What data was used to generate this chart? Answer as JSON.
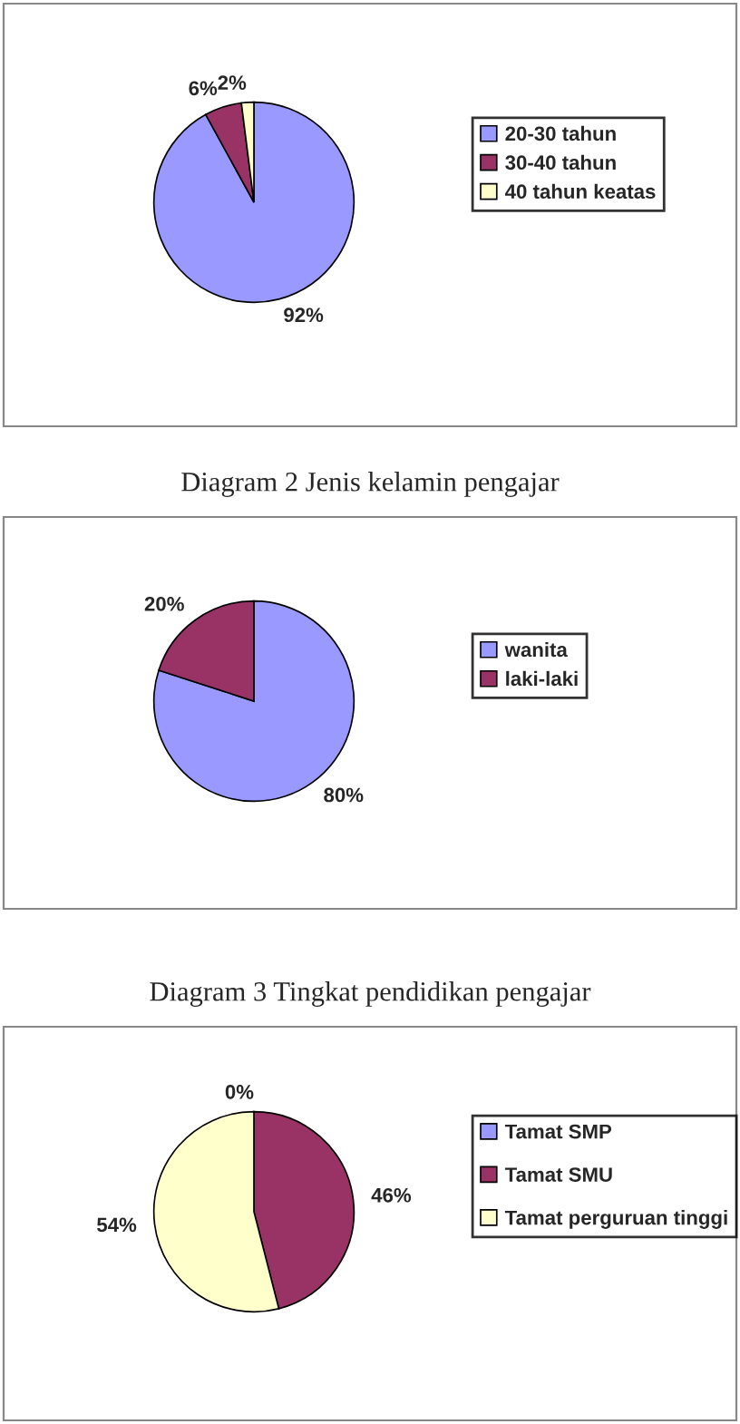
{
  "chart_data": [
    {
      "type": "pie",
      "categories": [
        "20-30 tahun",
        "30-40 tahun",
        "40 tahun keatas"
      ],
      "values": [
        92,
        6,
        2
      ],
      "value_labels": [
        "92%",
        "6%",
        "2%"
      ],
      "colors": [
        "#9999ff",
        "#993366",
        "#ffffcc"
      ],
      "legend": "right"
    },
    {
      "type": "pie",
      "title": "Diagram 2 Jenis kelamin pengajar",
      "categories": [
        "wanita",
        "laki-laki"
      ],
      "values": [
        80,
        20
      ],
      "value_labels": [
        "80%",
        "20%"
      ],
      "colors": [
        "#9999ff",
        "#993366"
      ],
      "legend": "right"
    },
    {
      "type": "pie",
      "title": "Diagram 3 Tingkat pendidikan pengajar",
      "categories": [
        "Tamat SMP",
        "Tamat SMU",
        "Tamat perguruan tinggi"
      ],
      "values": [
        0,
        46,
        54
      ],
      "value_labels": [
        "0%",
        "46%",
        "54%"
      ],
      "colors": [
        "#9999ff",
        "#993366",
        "#ffffcc"
      ],
      "legend": "right"
    }
  ]
}
